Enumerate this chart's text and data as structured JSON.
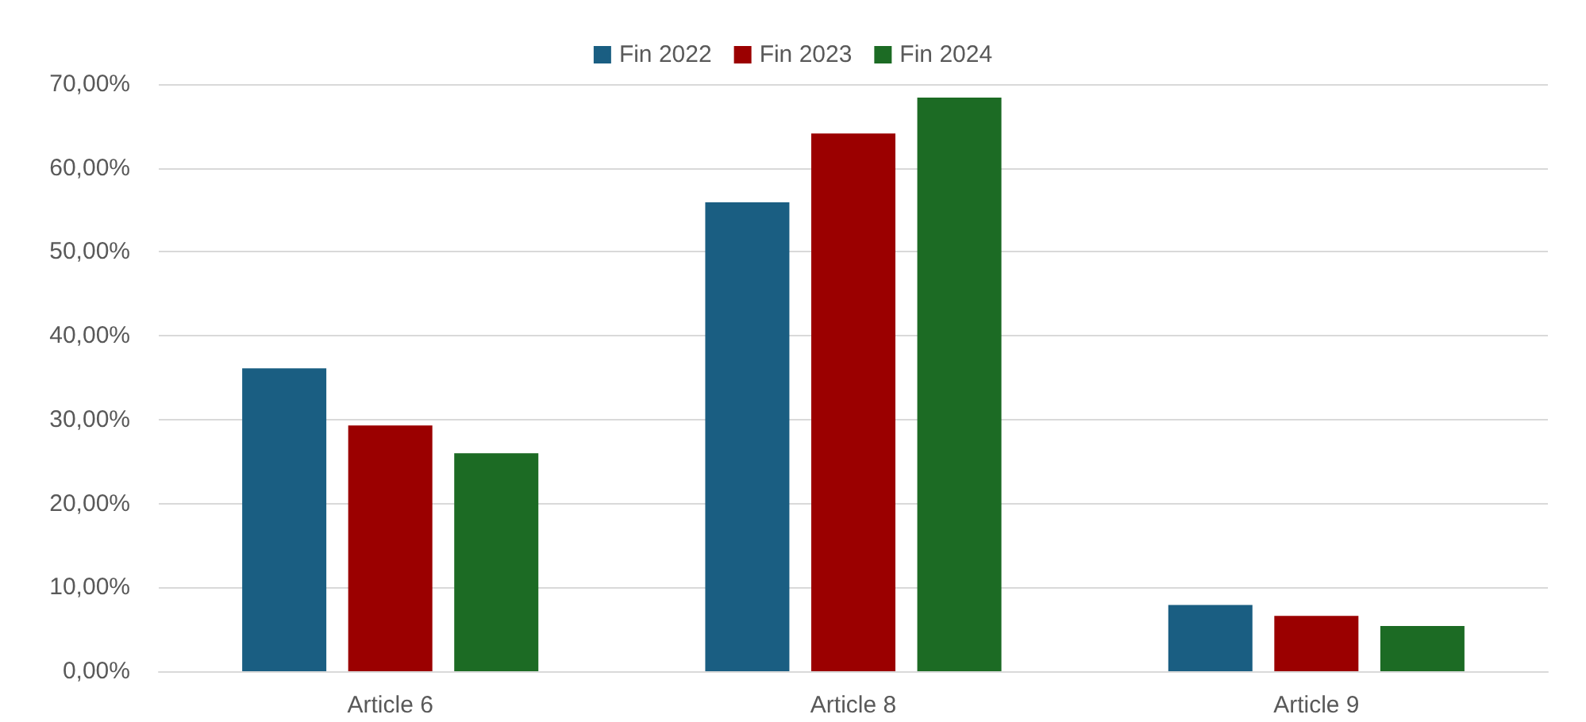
{
  "chart_data": {
    "type": "bar",
    "categories": [
      "Article 6",
      "Article 8",
      "Article 9"
    ],
    "series": [
      {
        "name": "Fin 2022",
        "color": "#1a5e82",
        "values": [
          36.1,
          55.9,
          7.9
        ]
      },
      {
        "name": "Fin 2023",
        "color": "#9b0000",
        "values": [
          29.3,
          64.1,
          6.6
        ]
      },
      {
        "name": "Fin 2024",
        "color": "#1c6b24",
        "values": [
          26.0,
          68.4,
          5.4
        ]
      }
    ],
    "ylim": [
      0,
      70
    ],
    "yticks": [
      {
        "value": 0,
        "label": "0,00%"
      },
      {
        "value": 10,
        "label": "10,00%"
      },
      {
        "value": 20,
        "label": "20,00%"
      },
      {
        "value": 30,
        "label": "30,00%"
      },
      {
        "value": 40,
        "label": "40,00%"
      },
      {
        "value": 50,
        "label": "50,00%"
      },
      {
        "value": 60,
        "label": "60,00%"
      },
      {
        "value": 70,
        "label": "70,00%"
      }
    ],
    "grid": "y",
    "legend": "top"
  }
}
